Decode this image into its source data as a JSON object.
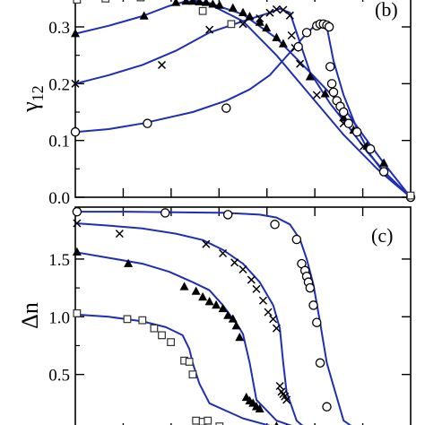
{
  "chart_data": [
    {
      "type": "line",
      "panel_label": "(b)",
      "ylabel": "γ",
      "ylabel_sub": "12",
      "xlim": [
        0,
        1
      ],
      "ylim": [
        0,
        0.36
      ],
      "yticks": [
        0.0,
        0.1,
        0.2,
        0.3
      ],
      "ytick_labels": [
        "0.0",
        "0.1",
        "0.2",
        "0.3"
      ],
      "line_color": "#1f2fb3",
      "series": [
        {
          "marker": "triangle",
          "line": [
            [
              0,
              0.288
            ],
            [
              0.1,
              0.302
            ],
            [
              0.2,
              0.319
            ],
            [
              0.28,
              0.337
            ],
            [
              0.33,
              0.345
            ],
            [
              0.4,
              0.342
            ],
            [
              0.5,
              0.322
            ],
            [
              0.6,
              0.28
            ],
            [
              0.7,
              0.22
            ],
            [
              0.8,
              0.158
            ],
            [
              0.86,
              0.108
            ],
            [
              0.92,
              0.06
            ],
            [
              1.0,
              0.0
            ]
          ],
          "points": [
            [
              0,
              0.288
            ],
            [
              0.205,
              0.319
            ],
            [
              0.3,
              0.343
            ],
            [
              0.33,
              0.345
            ],
            [
              0.35,
              0.345
            ],
            [
              0.37,
              0.344
            ],
            [
              0.39,
              0.343
            ],
            [
              0.41,
              0.34
            ],
            [
              0.43,
              0.338
            ],
            [
              0.47,
              0.333
            ],
            [
              0.5,
              0.325
            ],
            [
              0.52,
              0.318
            ],
            [
              0.55,
              0.308
            ],
            [
              0.57,
              0.298
            ],
            [
              0.6,
              0.281
            ],
            [
              0.62,
              0.27
            ],
            [
              0.7,
              0.212
            ],
            [
              0.745,
              0.182
            ],
            [
              0.8,
              0.14
            ],
            [
              0.83,
              0.118
            ],
            [
              0.87,
              0.09
            ],
            [
              0.92,
              0.06
            ]
          ]
        },
        {
          "marker": "cross",
          "line": [
            [
              0,
              0.2
            ],
            [
              0.1,
              0.215
            ],
            [
              0.2,
              0.233
            ],
            [
              0.3,
              0.258
            ],
            [
              0.4,
              0.29
            ],
            [
              0.5,
              0.31
            ],
            [
              0.58,
              0.325
            ],
            [
              0.61,
              0.332
            ],
            [
              0.64,
              0.325
            ],
            [
              0.66,
              0.29
            ],
            [
              0.7,
              0.22
            ],
            [
              0.76,
              0.165
            ],
            [
              0.82,
              0.12
            ],
            [
              0.87,
              0.08
            ],
            [
              0.93,
              0.04
            ],
            [
              1.0,
              0.0
            ]
          ],
          "points": [
            [
              0,
              0.2
            ],
            [
              0.258,
              0.233
            ],
            [
              0.4,
              0.295
            ],
            [
              0.5,
              0.305
            ],
            [
              0.55,
              0.315
            ],
            [
              0.58,
              0.325
            ],
            [
              0.6,
              0.331
            ],
            [
              0.62,
              0.33
            ],
            [
              0.64,
              0.32
            ],
            [
              0.645,
              0.285
            ],
            [
              0.655,
              0.263
            ],
            [
              0.67,
              0.235
            ],
            [
              0.72,
              0.18
            ],
            [
              0.8,
              0.13
            ],
            [
              0.86,
              0.09
            ]
          ]
        },
        {
          "marker": "circle",
          "line": [
            [
              0,
              0.115
            ],
            [
              0.1,
              0.12
            ],
            [
              0.2,
              0.13
            ],
            [
              0.35,
              0.15
            ],
            [
              0.45,
              0.17
            ],
            [
              0.52,
              0.19
            ],
            [
              0.58,
              0.215
            ],
            [
              0.64,
              0.255
            ],
            [
              0.68,
              0.282
            ],
            [
              0.71,
              0.3
            ],
            [
              0.73,
              0.305
            ],
            [
              0.75,
              0.3
            ],
            [
              0.77,
              0.24
            ],
            [
              0.8,
              0.18
            ],
            [
              0.84,
              0.12
            ],
            [
              0.88,
              0.075
            ],
            [
              0.93,
              0.035
            ],
            [
              1.0,
              0.0
            ]
          ],
          "points": [
            [
              0,
              0.115
            ],
            [
              0.215,
              0.13
            ],
            [
              0.45,
              0.157
            ],
            [
              0.665,
              0.265
            ],
            [
              0.69,
              0.29
            ],
            [
              0.72,
              0.302
            ],
            [
              0.73,
              0.305
            ],
            [
              0.74,
              0.305
            ],
            [
              0.75,
              0.303
            ],
            [
              0.757,
              0.3
            ],
            [
              0.76,
              0.23
            ],
            [
              0.765,
              0.2
            ],
            [
              0.77,
              0.185
            ],
            [
              0.78,
              0.17
            ],
            [
              0.79,
              0.16
            ],
            [
              0.8,
              0.15
            ],
            [
              0.815,
              0.13
            ],
            [
              0.84,
              0.115
            ],
            [
              0.88,
              0.085
            ],
            [
              0.92,
              0.045
            ],
            [
              1.0,
              0.0
            ]
          ]
        },
        {
          "marker": "square",
          "line": [
            [
              0,
              0.36
            ],
            [
              0.15,
              0.358
            ],
            [
              0.3,
              0.355
            ],
            [
              0.4,
              0.34
            ],
            [
              0.5,
              0.31
            ],
            [
              0.6,
              0.25
            ],
            [
              0.7,
              0.18
            ],
            [
              0.8,
              0.11
            ],
            [
              0.9,
              0.05
            ],
            [
              1.0,
              0.0
            ]
          ],
          "points": [
            [
              0.005,
              0.348
            ],
            [
              0.09,
              0.35
            ],
            [
              0.195,
              0.352
            ],
            [
              0.38,
              0.328
            ],
            [
              0.465,
              0.305
            ],
            [
              1.0,
              0.003
            ]
          ]
        }
      ]
    },
    {
      "type": "line",
      "panel_label": "(c)",
      "ylabel": "Δn",
      "xlim": [
        0,
        1
      ],
      "ylim": [
        0,
        1.95
      ],
      "yticks": [
        0.5,
        1.0,
        1.5
      ],
      "ytick_labels": [
        "0.5",
        "1.0",
        "1.5"
      ],
      "line_color": "#1f2fb3",
      "series": [
        {
          "marker": "circle",
          "line": [
            [
              0,
              1.91
            ],
            [
              0.15,
              1.91
            ],
            [
              0.3,
              1.905
            ],
            [
              0.45,
              1.9
            ],
            [
              0.55,
              1.885
            ],
            [
              0.6,
              1.86
            ],
            [
              0.64,
              1.8
            ],
            [
              0.67,
              1.67
            ],
            [
              0.69,
              1.5
            ],
            [
              0.71,
              1.28
            ],
            [
              0.73,
              0.95
            ],
            [
              0.75,
              0.6
            ],
            [
              0.78,
              0.3
            ],
            [
              0.8,
              0.1
            ],
            [
              0.85,
              0.0
            ]
          ],
          "points": [
            [
              0.005,
              1.91
            ],
            [
              0.268,
              1.9
            ],
            [
              0.455,
              1.885
            ],
            [
              0.595,
              1.8
            ],
            [
              0.66,
              1.67
            ],
            [
              0.675,
              1.46
            ],
            [
              0.685,
              1.4
            ],
            [
              0.69,
              1.35
            ],
            [
              0.695,
              1.3
            ],
            [
              0.7,
              1.25
            ],
            [
              0.71,
              1.1
            ],
            [
              0.72,
              0.95
            ],
            [
              0.73,
              0.6
            ],
            [
              0.75,
              0.22
            ]
          ]
        },
        {
          "marker": "cross",
          "line": [
            [
              0,
              1.81
            ],
            [
              0.1,
              1.79
            ],
            [
              0.2,
              1.765
            ],
            [
              0.3,
              1.72
            ],
            [
              0.38,
              1.665
            ],
            [
              0.44,
              1.58
            ],
            [
              0.5,
              1.46
            ],
            [
              0.55,
              1.3
            ],
            [
              0.59,
              1.1
            ],
            [
              0.61,
              0.9
            ],
            [
              0.62,
              0.6
            ],
            [
              0.63,
              0.35
            ],
            [
              0.66,
              0.1
            ],
            [
              0.7,
              0.0
            ]
          ],
          "points": [
            [
              0.005,
              1.81
            ],
            [
              0.132,
              1.72
            ],
            [
              0.39,
              1.63
            ],
            [
              0.44,
              1.55
            ],
            [
              0.475,
              1.47
            ],
            [
              0.5,
              1.41
            ],
            [
              0.525,
              1.32
            ],
            [
              0.54,
              1.24
            ],
            [
              0.56,
              1.14
            ],
            [
              0.575,
              1.04
            ],
            [
              0.59,
              0.98
            ],
            [
              0.6,
              0.9
            ],
            [
              0.61,
              0.4
            ],
            [
              0.615,
              0.35
            ],
            [
              0.62,
              0.33
            ],
            [
              0.625,
              0.31
            ],
            [
              0.63,
              0.28
            ]
          ]
        },
        {
          "marker": "triangle",
          "line": [
            [
              0,
              1.56
            ],
            [
              0.1,
              1.51
            ],
            [
              0.2,
              1.46
            ],
            [
              0.28,
              1.39
            ],
            [
              0.35,
              1.3
            ],
            [
              0.4,
              1.23
            ],
            [
              0.44,
              1.1
            ],
            [
              0.47,
              0.98
            ],
            [
              0.49,
              0.9
            ],
            [
              0.5,
              0.85
            ],
            [
              0.52,
              0.6
            ],
            [
              0.54,
              0.28
            ],
            [
              0.6,
              0.1
            ],
            [
              0.7,
              0.0
            ]
          ],
          "points": [
            [
              0.005,
              1.56
            ],
            [
              0.158,
              1.46
            ],
            [
              0.325,
              1.26
            ],
            [
              0.36,
              1.22
            ],
            [
              0.38,
              1.17
            ],
            [
              0.4,
              1.13
            ],
            [
              0.42,
              1.1
            ],
            [
              0.44,
              1.07
            ],
            [
              0.455,
              1.01
            ],
            [
              0.47,
              0.98
            ],
            [
              0.48,
              0.92
            ],
            [
              0.49,
              0.82
            ],
            [
              0.51,
              0.3
            ],
            [
              0.52,
              0.27
            ],
            [
              0.53,
              0.25
            ],
            [
              0.54,
              0.22
            ],
            [
              0.55,
              0.2
            ],
            [
              0.6,
              0.05
            ],
            [
              0.63,
              0.03
            ]
          ]
        },
        {
          "marker": "square",
          "line": [
            [
              0,
              1.02
            ],
            [
              0.1,
              1.0
            ],
            [
              0.2,
              0.96
            ],
            [
              0.27,
              0.91
            ],
            [
              0.32,
              0.84
            ],
            [
              0.34,
              0.72
            ],
            [
              0.35,
              0.6
            ],
            [
              0.37,
              0.42
            ],
            [
              0.4,
              0.25
            ],
            [
              0.5,
              0.12
            ],
            [
              0.6,
              0.04
            ],
            [
              0.7,
              0.0
            ]
          ],
          "points": [
            [
              0.005,
              1.03
            ],
            [
              0.155,
              0.98
            ],
            [
              0.2,
              0.97
            ],
            [
              0.235,
              0.9
            ],
            [
              0.258,
              0.84
            ],
            [
              0.285,
              0.78
            ],
            [
              0.325,
              0.62
            ],
            [
              0.34,
              0.61
            ],
            [
              0.35,
              0.5
            ],
            [
              0.36,
              0.1
            ],
            [
              0.38,
              0.09
            ],
            [
              0.395,
              0.1
            ],
            [
              0.43,
              0.05
            ]
          ]
        }
      ]
    }
  ]
}
